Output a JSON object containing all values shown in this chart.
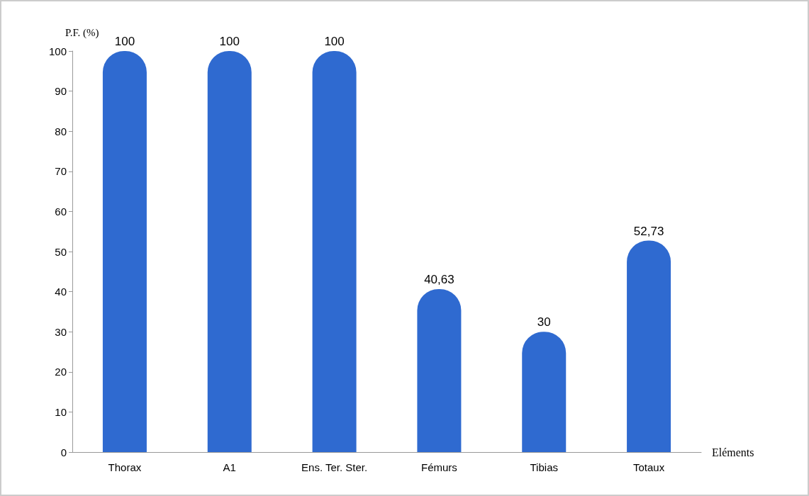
{
  "chart_data": {
    "type": "bar",
    "ylabel": "P.F. (%)",
    "xlabel": "Eléments",
    "categories": [
      "Thorax",
      "A1",
      "Ens. Ter. Ster.",
      "Fémurs",
      "Tibias",
      "Totaux"
    ],
    "values": [
      100,
      100,
      100,
      40.63,
      30,
      52.73
    ],
    "value_labels": [
      "100",
      "100",
      "100",
      "40,63",
      "30",
      "52,73"
    ],
    "color": "#2f6ad0",
    "ylim": [
      0,
      100
    ],
    "yticks": [
      0,
      10,
      20,
      30,
      40,
      50,
      60,
      70,
      80,
      90,
      100
    ],
    "grid": false
  }
}
